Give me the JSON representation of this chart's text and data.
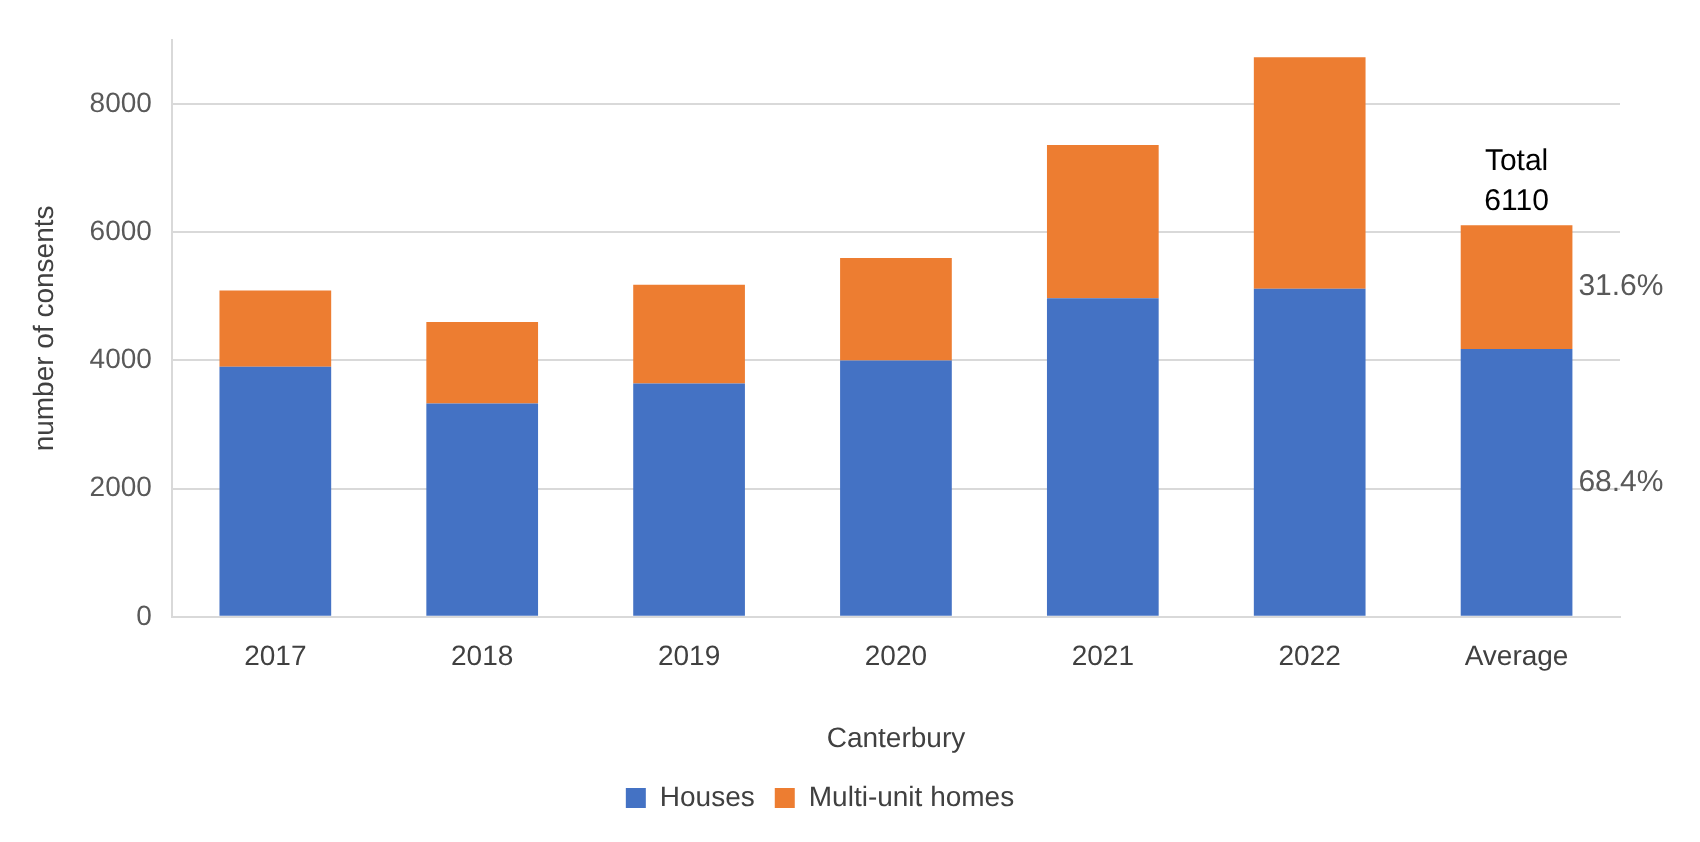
{
  "chart_data": {
    "type": "bar",
    "stacked": true,
    "categories": [
      "2017",
      "2018",
      "2019",
      "2020",
      "2021",
      "2022",
      "Average"
    ],
    "xlabel": "Canterbury",
    "ylabel": "number of consents",
    "series": [
      {
        "name": "Houses",
        "color": "#4472c4",
        "values": [
          3900,
          3330,
          3640,
          4000,
          4970,
          5120,
          4180
        ]
      },
      {
        "name": "Multi-unit homes",
        "color": "#ed7d31",
        "values": [
          1190,
          1270,
          1540,
          1600,
          2390,
          3610,
          1930
        ]
      }
    ],
    "annotations": [
      {
        "text": "Total\n6110",
        "x": "Average",
        "y": 6110
      },
      "31.6%",
      "68.4%"
    ],
    "ylim": [
      0,
      9000
    ],
    "yticks": [
      0,
      2000,
      4000,
      6000,
      8000
    ],
    "grid": "y",
    "legend": "bottom"
  }
}
